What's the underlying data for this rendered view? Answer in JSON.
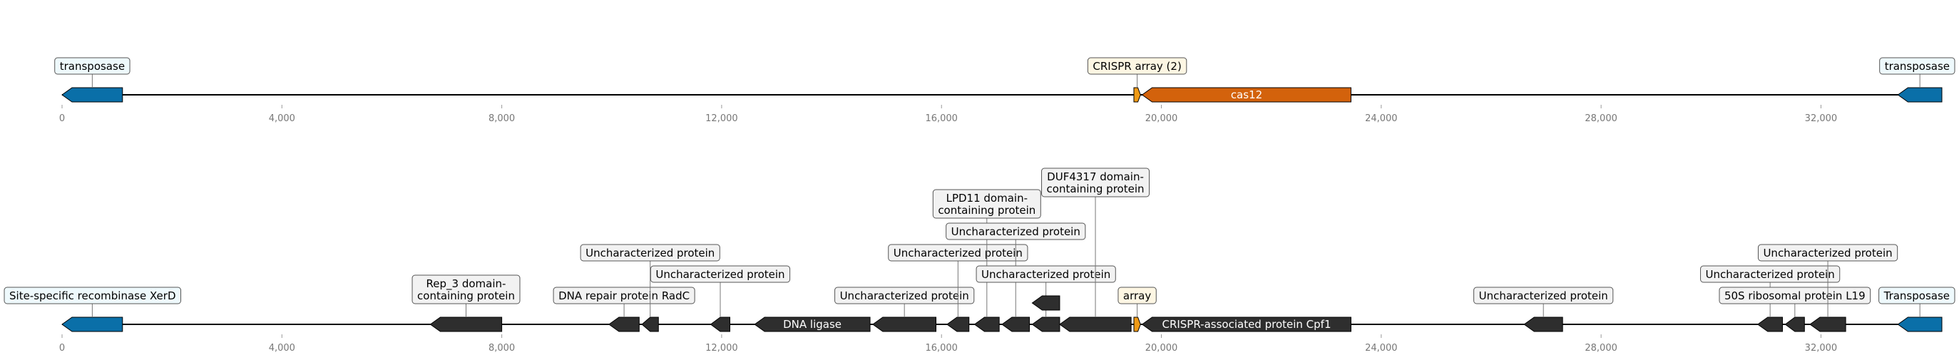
{
  "colors": {
    "transposase": "#0a6fa8",
    "cas": "#d3620c",
    "array": "#ef9a16",
    "other": "#2e2e2e",
    "transposase_box": "#eef9fc",
    "array_box": "#fdf6e3",
    "default_box": "#f2f2f2"
  },
  "x_ticks": [
    "0",
    "4,000",
    "8,000",
    "12,000",
    "16,000",
    "20,000",
    "24,000",
    "28,000",
    "32,000"
  ],
  "x_tick_values": [
    0,
    4000,
    8000,
    12000,
    16000,
    20000,
    24000,
    28000,
    32000
  ],
  "tracks": [
    {
      "id": "track-top",
      "length": 34200,
      "features": [
        {
          "start": 0,
          "end": 1100,
          "strand": -1,
          "kind": "transposase",
          "label": "transposase",
          "label_pos": "above",
          "tier": 0
        },
        {
          "start": 19500,
          "end": 19620,
          "strand": 1,
          "kind": "array",
          "label": "CRISPR array (2)",
          "label_pos": "above",
          "tier": 0
        },
        {
          "start": 19650,
          "end": 23450,
          "strand": -1,
          "kind": "cas",
          "label": "cas12",
          "label_pos": "inside"
        },
        {
          "start": 33400,
          "end": 34200,
          "strand": -1,
          "kind": "transposase",
          "label": "transposase",
          "label_pos": "above",
          "tier": 0
        }
      ]
    },
    {
      "id": "track-bottom",
      "length": 34200,
      "features": [
        {
          "start": 0,
          "end": 1100,
          "strand": -1,
          "kind": "transposase",
          "label": "Site-specific recombinase XerD",
          "label_pos": "above",
          "tier": 0
        },
        {
          "start": 6700,
          "end": 8000,
          "strand": -1,
          "kind": "other",
          "label": "Rep_3 domain-\ncontaining protein",
          "label_pos": "above",
          "tier": 0
        },
        {
          "start": 9950,
          "end": 10500,
          "strand": -1,
          "kind": "other",
          "label": "DNA repair protein RadC",
          "label_pos": "above",
          "tier": 0
        },
        {
          "start": 10550,
          "end": 10850,
          "strand": -1,
          "kind": "other",
          "label": "Uncharacterized protein",
          "label_pos": "above",
          "tier": 2
        },
        {
          "start": 11800,
          "end": 12150,
          "strand": -1,
          "kind": "other",
          "label": "Uncharacterized protein",
          "label_pos": "above",
          "tier": 1
        },
        {
          "start": 12600,
          "end": 14700,
          "strand": -1,
          "kind": "other",
          "label": "DNA ligase",
          "label_pos": "inside"
        },
        {
          "start": 14750,
          "end": 15900,
          "strand": -1,
          "kind": "other",
          "label": "Uncharacterized protein",
          "label_pos": "above",
          "tier": 0
        },
        {
          "start": 16100,
          "end": 16500,
          "strand": -1,
          "kind": "other",
          "label": "Uncharacterized protein",
          "label_pos": "above",
          "tier": 2
        },
        {
          "start": 16600,
          "end": 17050,
          "strand": -1,
          "kind": "other",
          "label": "LPD11 domain-\ncontaining protein",
          "label_pos": "above",
          "tier": 4
        },
        {
          "start": 17100,
          "end": 17600,
          "strand": -1,
          "kind": "other",
          "label": "Uncharacterized protein",
          "label_pos": "above",
          "tier": 3
        },
        {
          "start": 17650,
          "end": 18150,
          "strand": -1,
          "kind": "other",
          "label": "Uncharacterized protein",
          "label_pos": "above",
          "tier": 1
        },
        {
          "start": 17650,
          "end": 18150,
          "strand": -1,
          "kind": "other",
          "label": "",
          "label_pos": "none",
          "raised": true
        },
        {
          "start": 18150,
          "end": 19450,
          "strand": -1,
          "kind": "other",
          "label": "DUF4317 domain-\ncontaining protein",
          "label_pos": "above",
          "tier": 5
        },
        {
          "start": 19500,
          "end": 19620,
          "strand": 1,
          "kind": "array",
          "label": "array",
          "label_pos": "above",
          "tier": 0
        },
        {
          "start": 19650,
          "end": 23450,
          "strand": -1,
          "kind": "other",
          "label": "CRISPR-associated protein Cpf1",
          "label_pos": "inside"
        },
        {
          "start": 26600,
          "end": 27300,
          "strand": -1,
          "kind": "other",
          "label": "Uncharacterized protein",
          "label_pos": "above",
          "tier": 0
        },
        {
          "start": 30850,
          "end": 31300,
          "strand": -1,
          "kind": "other",
          "label": "Uncharacterized protein",
          "label_pos": "above",
          "tier": 1
        },
        {
          "start": 31350,
          "end": 31700,
          "strand": -1,
          "kind": "other",
          "label": "50S ribosomal protein L19",
          "label_pos": "above",
          "tier": 0
        },
        {
          "start": 31800,
          "end": 32450,
          "strand": -1,
          "kind": "other",
          "label": "Uncharacterized protein",
          "label_pos": "above",
          "tier": 2
        },
        {
          "start": 33400,
          "end": 34200,
          "strand": -1,
          "kind": "transposase",
          "label": "Transposase",
          "label_pos": "above",
          "tier": 0
        }
      ]
    }
  ]
}
